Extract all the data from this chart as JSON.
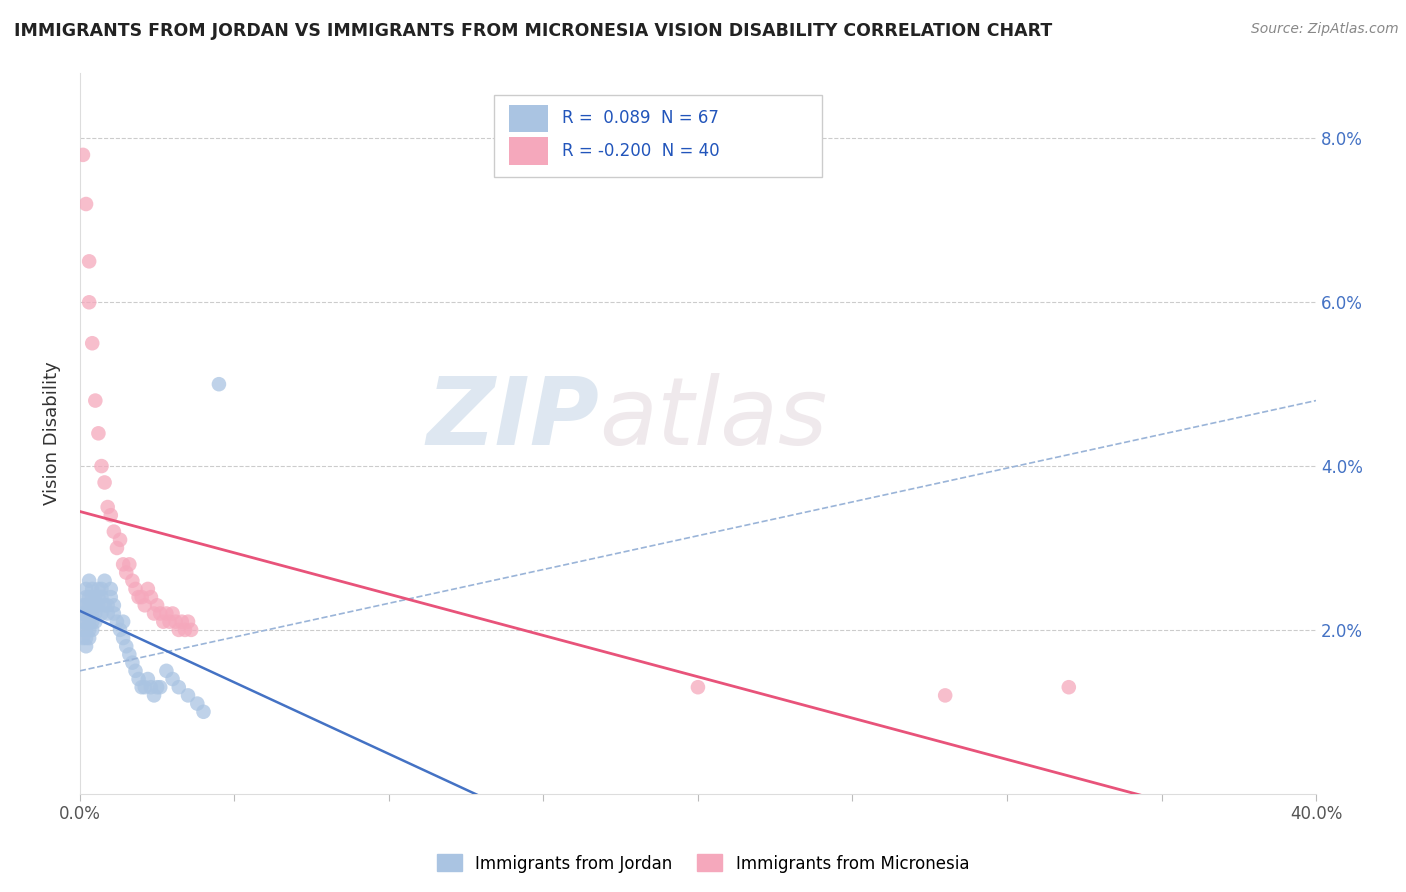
{
  "title": "IMMIGRANTS FROM JORDAN VS IMMIGRANTS FROM MICRONESIA VISION DISABILITY CORRELATION CHART",
  "source": "Source: ZipAtlas.com",
  "ylabel": "Vision Disability",
  "xlim": [
    0.0,
    0.4
  ],
  "ylim": [
    0.0,
    0.088
  ],
  "jordan_color": "#aac4e2",
  "micronesia_color": "#f5a8bc",
  "jordan_line_color": "#4472c4",
  "micronesia_line_color": "#e8537a",
  "jordan_dash_color": "#9ab4d8",
  "R_jordan": 0.089,
  "N_jordan": 67,
  "R_micronesia": -0.2,
  "N_micronesia": 40,
  "watermark_zip": "ZIP",
  "watermark_atlas": "atlas",
  "jordan_scatter_x": [
    0.001,
    0.001,
    0.001,
    0.001,
    0.001,
    0.002,
    0.002,
    0.002,
    0.002,
    0.002,
    0.002,
    0.002,
    0.002,
    0.003,
    0.003,
    0.003,
    0.003,
    0.003,
    0.003,
    0.003,
    0.004,
    0.004,
    0.004,
    0.004,
    0.004,
    0.004,
    0.005,
    0.005,
    0.005,
    0.005,
    0.006,
    0.006,
    0.006,
    0.007,
    0.007,
    0.007,
    0.008,
    0.008,
    0.009,
    0.009,
    0.01,
    0.01,
    0.011,
    0.011,
    0.012,
    0.013,
    0.014,
    0.014,
    0.015,
    0.016,
    0.017,
    0.018,
    0.019,
    0.02,
    0.021,
    0.022,
    0.023,
    0.024,
    0.025,
    0.026,
    0.028,
    0.03,
    0.032,
    0.035,
    0.038,
    0.04,
    0.045
  ],
  "jordan_scatter_y": [
    0.022,
    0.021,
    0.02,
    0.023,
    0.019,
    0.024,
    0.022,
    0.021,
    0.02,
    0.023,
    0.019,
    0.018,
    0.025,
    0.024,
    0.022,
    0.021,
    0.02,
    0.023,
    0.026,
    0.019,
    0.024,
    0.022,
    0.021,
    0.02,
    0.023,
    0.025,
    0.024,
    0.022,
    0.021,
    0.023,
    0.025,
    0.024,
    0.023,
    0.025,
    0.024,
    0.022,
    0.026,
    0.023,
    0.023,
    0.022,
    0.025,
    0.024,
    0.023,
    0.022,
    0.021,
    0.02,
    0.019,
    0.021,
    0.018,
    0.017,
    0.016,
    0.015,
    0.014,
    0.013,
    0.013,
    0.014,
    0.013,
    0.012,
    0.013,
    0.013,
    0.015,
    0.014,
    0.013,
    0.012,
    0.011,
    0.01,
    0.05
  ],
  "micronesia_scatter_x": [
    0.001,
    0.002,
    0.003,
    0.003,
    0.004,
    0.005,
    0.006,
    0.007,
    0.008,
    0.009,
    0.01,
    0.011,
    0.012,
    0.013,
    0.014,
    0.015,
    0.016,
    0.017,
    0.018,
    0.019,
    0.02,
    0.021,
    0.022,
    0.023,
    0.024,
    0.025,
    0.026,
    0.027,
    0.028,
    0.029,
    0.03,
    0.031,
    0.032,
    0.033,
    0.034,
    0.035,
    0.036,
    0.2,
    0.28,
    0.32
  ],
  "micronesia_scatter_y": [
    0.078,
    0.072,
    0.065,
    0.06,
    0.055,
    0.048,
    0.044,
    0.04,
    0.038,
    0.035,
    0.034,
    0.032,
    0.03,
    0.031,
    0.028,
    0.027,
    0.028,
    0.026,
    0.025,
    0.024,
    0.024,
    0.023,
    0.025,
    0.024,
    0.022,
    0.023,
    0.022,
    0.021,
    0.022,
    0.021,
    0.022,
    0.021,
    0.02,
    0.021,
    0.02,
    0.021,
    0.02,
    0.013,
    0.012,
    0.013
  ]
}
